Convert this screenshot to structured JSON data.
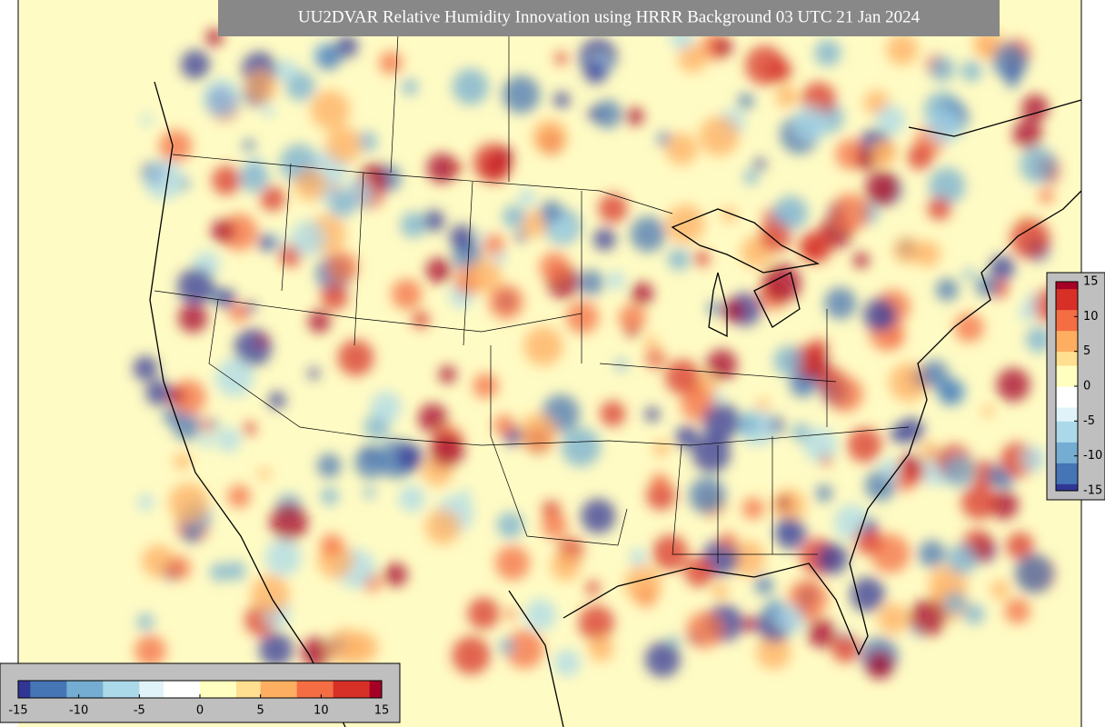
{
  "title": "UU2DVAR Relative Humidity Innovation using HRRR Background 03 UTC 21 Jan 2024",
  "colorbar": {
    "vmin": -15,
    "vmax": 15,
    "ticks": [
      -15,
      -10,
      -5,
      0,
      5,
      10,
      15
    ],
    "colors": [
      "#313695",
      "#4575b4",
      "#74add1",
      "#abd9e9",
      "#e0f3f8",
      "#ffffff",
      "#ffffbf",
      "#fee090",
      "#fdae61",
      "#f46d43",
      "#d73027",
      "#a50026"
    ]
  }
}
